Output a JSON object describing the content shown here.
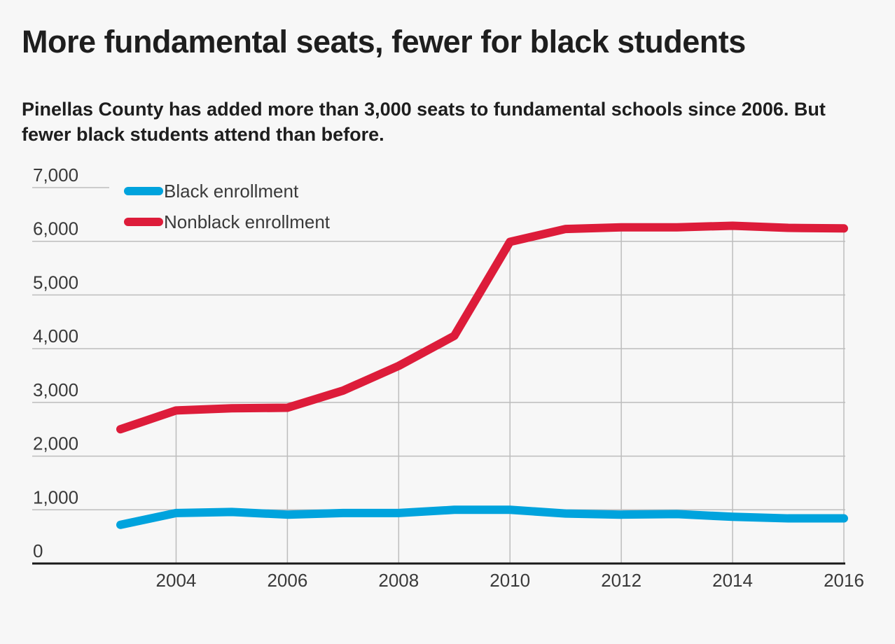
{
  "title": "More fundamental seats, fewer for black students",
  "subtitle": "Pinellas County has added more than 3,000 seats to fundamental schools since 2006. But fewer black students attend than before.",
  "colors": {
    "black_enrollment": "#00a3dd",
    "nonblack_enrollment": "#dd1c3a",
    "grid": "#bdbdbd",
    "axis": "#1a1a1a"
  },
  "chart_data": {
    "type": "line",
    "title": "More fundamental seats, fewer for black students",
    "xlabel": "",
    "ylabel": "",
    "x": [
      2003,
      2004,
      2005,
      2006,
      2007,
      2008,
      2009,
      2010,
      2011,
      2012,
      2013,
      2014,
      2015,
      2016
    ],
    "xlim": [
      2003,
      2016
    ],
    "ylim": [
      0,
      7000
    ],
    "x_ticks": [
      2004,
      2006,
      2008,
      2010,
      2012,
      2014,
      2016
    ],
    "x_tick_labels": [
      "2004",
      "2006",
      "2008",
      "2010",
      "2012",
      "2014",
      "2016"
    ],
    "y_ticks": [
      0,
      1000,
      2000,
      3000,
      4000,
      5000,
      6000,
      7000
    ],
    "y_tick_labels": [
      "0",
      "1,000",
      "2,000",
      "3,000",
      "4,000",
      "5,000",
      "6,000",
      "7,000"
    ],
    "grid": true,
    "legend_position": "top-left",
    "series": [
      {
        "name": "Black enrollment",
        "color": "#00a3dd",
        "values": [
          720,
          940,
          960,
          910,
          940,
          940,
          1000,
          1000,
          930,
          910,
          920,
          870,
          840,
          840
        ]
      },
      {
        "name": "Nonblack enrollment",
        "color": "#dd1c3a",
        "values": [
          2500,
          2850,
          2890,
          2900,
          3220,
          3680,
          4240,
          5990,
          6230,
          6260,
          6260,
          6290,
          6250,
          6240
        ]
      }
    ]
  }
}
